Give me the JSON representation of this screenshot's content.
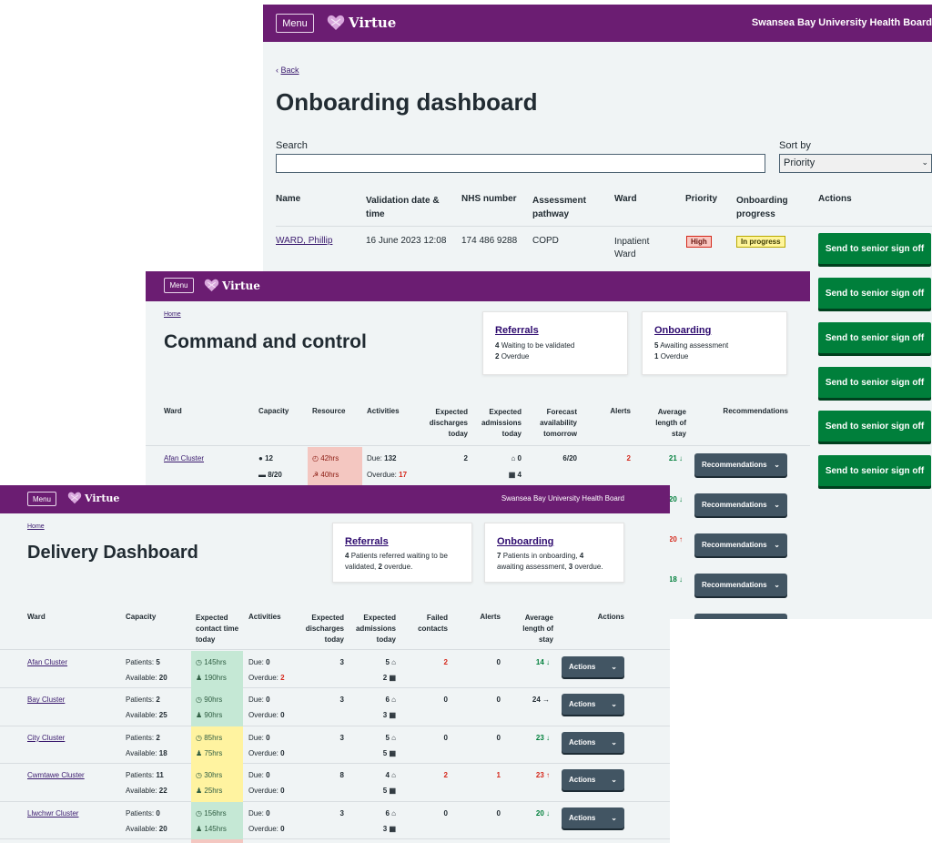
{
  "colors": {
    "brand": "#6b1d72",
    "button_dark": "#425563",
    "button_green": "#007f3b",
    "alert_red": "#d5281b",
    "good_green": "#007f3b",
    "time_green": "#c5e8d5",
    "time_yellow": "#fff3a0",
    "resource_red": "#f4c7c1"
  },
  "onboarding": {
    "menu_label": "Menu",
    "logo_text": "Virtue",
    "org_name": "Swansea Bay University Health Board",
    "back_label": "Back",
    "title": "Onboarding dashboard",
    "search_label": "Search",
    "search_value": "",
    "sort_label": "Sort by",
    "sort_value": "Priority",
    "columns": [
      "Name",
      "Validation date & time",
      "NHS number",
      "Assessment pathway",
      "Ward",
      "Priority",
      "Onboarding progress",
      "Actions"
    ],
    "row": {
      "name": "WARD, Phillip",
      "date": "16 June 2023 12:08",
      "nhs": "174 486 9288",
      "pathway": "COPD",
      "ward": "Inpatient Ward",
      "priority": "High",
      "progress": "In progress"
    },
    "action_labels": [
      "Send to senior sign off",
      "Send to senior sign off",
      "Send to senior sign off",
      "Send to senior sign off",
      "Send to senior sign off",
      "Send to senior sign off"
    ]
  },
  "command": {
    "menu_label": "Menu",
    "logo_text": "Virtue",
    "breadcrumb": "Home",
    "title": "Command and control",
    "referrals": {
      "title": "Referrals",
      "line1_num": "4",
      "line1_text": "Waiting to be validated",
      "line2_num": "2",
      "line2_text": "Overdue"
    },
    "onboarding_card": {
      "title": "Onboarding",
      "line1_num": "5",
      "line1_text": "Awaiting assessment",
      "line2_num": "1",
      "line2_text": "Overdue"
    },
    "columns": [
      "Ward",
      "Capacity",
      "Resource",
      "Activities",
      "Expected discharges today",
      "Expected admissions today",
      "Forecast availability tomorrow",
      "Alerts",
      "Average length of stay",
      "Recommendations"
    ],
    "row": {
      "ward": "Afan Cluster",
      "cap1": "12",
      "cap2": "8/20",
      "res1": "42hrs",
      "res2": "40hrs",
      "due_label": "Due:",
      "due": "132",
      "overdue_label": "Overdue:",
      "overdue": "17",
      "discharges": "2",
      "adm1": "0",
      "adm2": "4",
      "forecast": "6/20",
      "alerts": "2",
      "avg": "21 ↓"
    },
    "avg_hidden": [
      "20 ↓",
      "20 ↑",
      "18 ↓"
    ],
    "rec_label": "Recommendations"
  },
  "delivery": {
    "menu_label": "Menu",
    "logo_text": "Virtue",
    "org_name": "Swansea Bay University Health Board",
    "breadcrumb": "Home",
    "title": "Delivery Dashboard",
    "referrals": {
      "title": "Referrals",
      "p_num": "4",
      "p_text1": "Patients referred waiting to be validated,",
      "p_num2": "2",
      "p_text2": "overdue."
    },
    "onboarding_card": {
      "title": "Onboarding",
      "n1": "7",
      "t1": "Patients in onboarding,",
      "n2": "4",
      "t2": "awaiting assessment,",
      "n3": "3",
      "t3": "overdue."
    },
    "columns": [
      "Ward",
      "Capacity",
      "Expected contact time today",
      "Activities",
      "Expected discharges today",
      "Expected admissions today",
      "Failed contacts",
      "Alerts",
      "Average length of stay",
      "Actions"
    ],
    "patients_label": "Patients:",
    "available_label": "Available:",
    "due_label": "Due:",
    "overdue_label": "Overdue:",
    "actions_label": "Actions",
    "rows": [
      {
        "ward": "Afan Cluster",
        "patients": "5",
        "available": "20",
        "t1": "145hrs",
        "t2": "190hrs",
        "tcolor": "green",
        "due": "0",
        "overdue": "2",
        "overdue_red": true,
        "discharges": "3",
        "adm1": "5",
        "adm2": "2",
        "failed": "2",
        "failed_red": true,
        "alerts": "0",
        "alerts_red": false,
        "avg": "14 ↓",
        "avg_color": "green"
      },
      {
        "ward": "Bay Cluster",
        "patients": "2",
        "available": "25",
        "t1": "90hrs",
        "t2": "90hrs",
        "tcolor": "green",
        "due": "0",
        "overdue": "0",
        "overdue_red": false,
        "discharges": "3",
        "adm1": "6",
        "adm2": "3",
        "failed": "0",
        "failed_red": false,
        "alerts": "0",
        "alerts_red": false,
        "avg": "24 →",
        "avg_color": "dark"
      },
      {
        "ward": "City Cluster",
        "patients": "2",
        "available": "18",
        "t1": "85hrs",
        "t2": "75hrs",
        "tcolor": "yellow",
        "due": "0",
        "overdue": "0",
        "overdue_red": false,
        "discharges": "3",
        "adm1": "5",
        "adm2": "5",
        "failed": "0",
        "failed_red": false,
        "alerts": "0",
        "alerts_red": false,
        "avg": "23 ↓",
        "avg_color": "green"
      },
      {
        "ward": "Cwmtawe Cluster",
        "patients": "11",
        "available": "22",
        "t1": "30hrs",
        "t2": "25hrs",
        "tcolor": "yellow",
        "due": "0",
        "overdue": "0",
        "overdue_red": false,
        "discharges": "8",
        "adm1": "4",
        "adm2": "5",
        "failed": "2",
        "failed_red": true,
        "alerts": "1",
        "alerts_red": true,
        "avg": "23 ↑",
        "avg_color": "red"
      },
      {
        "ward": "Llwchwr Cluster",
        "patients": "0",
        "available": "20",
        "t1": "156hrs",
        "t2": "145hrs",
        "tcolor": "green",
        "due": "0",
        "overdue": "0",
        "overdue_red": false,
        "discharges": "3",
        "adm1": "6",
        "adm2": "3",
        "failed": "0",
        "failed_red": false,
        "alerts": "0",
        "alerts_red": false,
        "avg": "20 ↓",
        "avg_color": "green"
      }
    ]
  }
}
